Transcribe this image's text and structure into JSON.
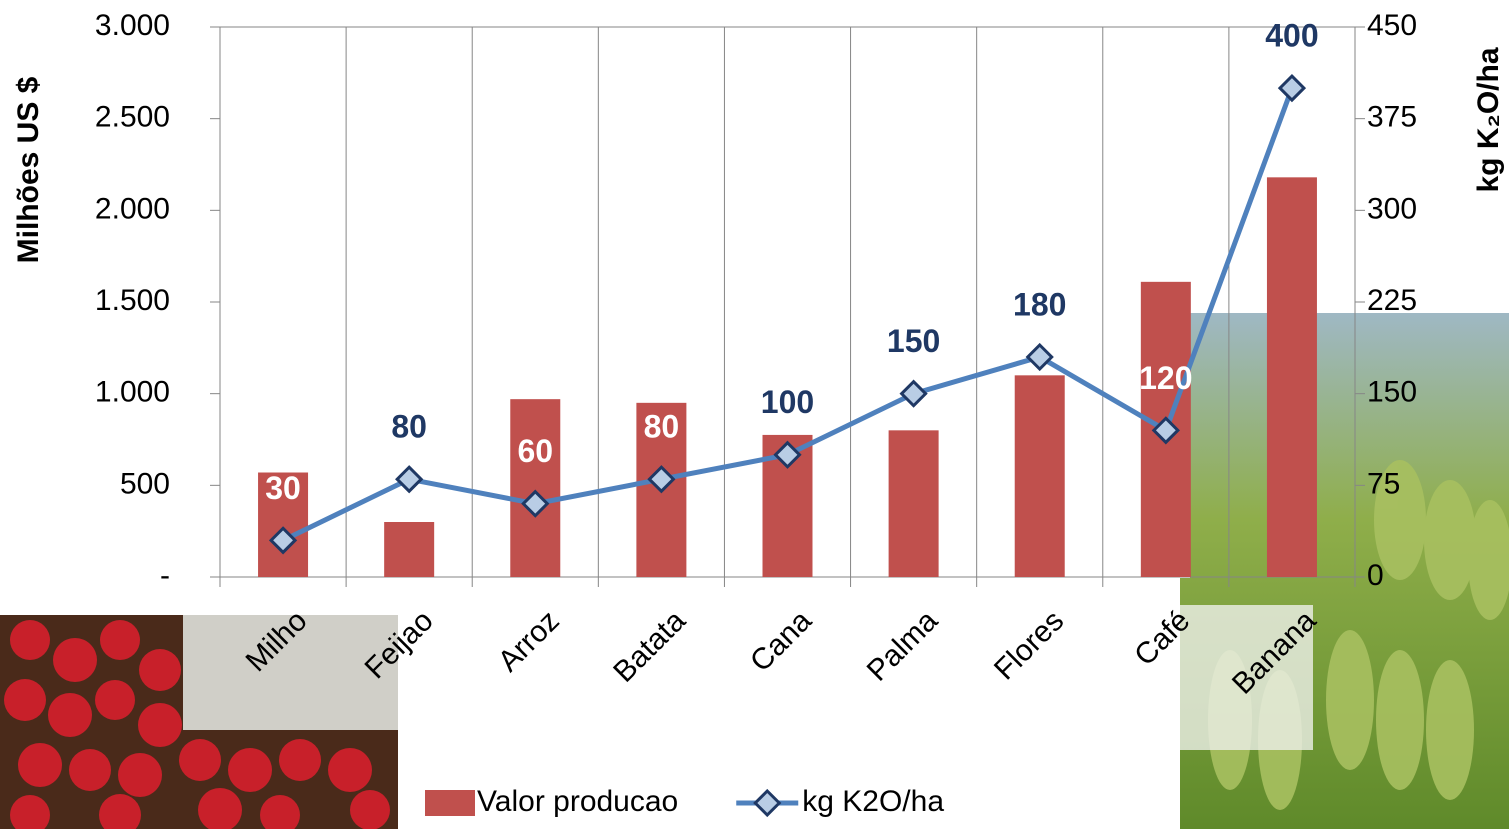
{
  "chart_data": {
    "type": "bar_line",
    "categories": [
      "Milho",
      "Feijao",
      "Arroz",
      "Batata",
      "Cana",
      "Palma",
      "Flores",
      "Café",
      "Banana"
    ],
    "series": [
      {
        "name": "Valor producao",
        "type": "bar",
        "color": "#c0504d",
        "values": [
          570,
          300,
          970,
          950,
          775,
          800,
          1100,
          1610,
          2180
        ]
      },
      {
        "name": "kg K2O/ha",
        "type": "line",
        "axis": "y2",
        "color": "#4f81bd",
        "values": [
          30,
          80,
          60,
          80,
          100,
          150,
          180,
          120,
          400
        ]
      }
    ],
    "ylabel": "Milhões US $",
    "y2label": "kg K₂O/ha",
    "ylim": [
      0,
      3000
    ],
    "yticks": [
      {
        "value": 0,
        "label": "-"
      },
      500,
      {
        "value": 1000,
        "label": "1.000"
      },
      {
        "value": 1500,
        "label": "1.500"
      },
      {
        "value": 2000,
        "label": "2.000"
      },
      {
        "value": 2500,
        "label": "2.500"
      },
      {
        "value": 3000,
        "label": "3.000"
      }
    ],
    "y2lim": [
      0,
      450
    ],
    "y2ticks": [
      0,
      75,
      150,
      225,
      300,
      375,
      450
    ],
    "grid": "x",
    "legend": "bottom"
  }
}
